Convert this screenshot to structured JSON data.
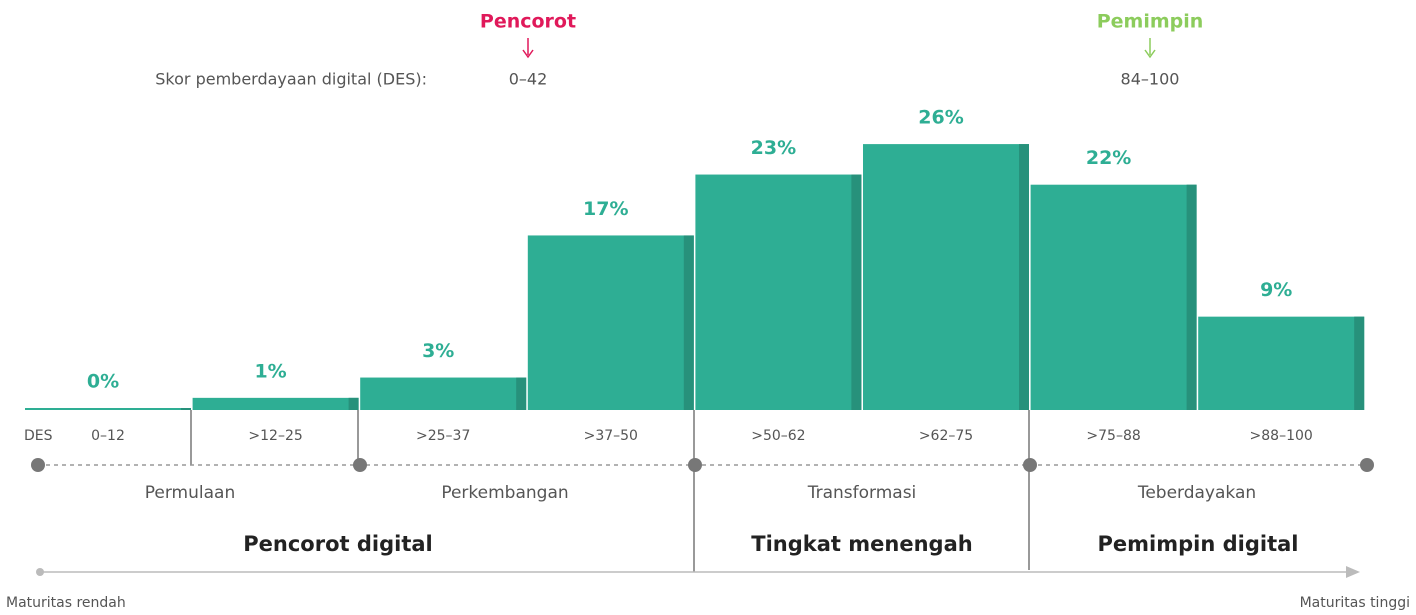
{
  "chart_data": {
    "type": "bar",
    "categories": [
      "0–12",
      ">12–25",
      ">25–37",
      ">37–50",
      ">50–62",
      ">62–75",
      ">75–88",
      ">88–100"
    ],
    "values": [
      0,
      1,
      3,
      17,
      23,
      26,
      22,
      9
    ],
    "value_labels": [
      "0%",
      "1%",
      "3%",
      "17%",
      "23%",
      "26%",
      "22%",
      "9%"
    ],
    "color": "#2eae94",
    "edge_color": "#27917b",
    "tick_prefix": "DES",
    "header": {
      "label": "Skor pemberdayaan digital (DES):",
      "markers": [
        {
          "label": "Pencorot",
          "range": "0–42",
          "color": "#e0195a"
        },
        {
          "label": "Pemimpin",
          "range": "84–100",
          "color": "#8ccc5c"
        }
      ]
    },
    "stages": [
      "Permulaan",
      "Perkembangan",
      "Transformasi",
      "Teberdayakan"
    ],
    "groups": [
      "Pencorot digital",
      "Tingkat menengah",
      "Pemimpin digital"
    ],
    "axis_ends": [
      "Maturitas rendah",
      "Maturitas tinggi"
    ]
  }
}
